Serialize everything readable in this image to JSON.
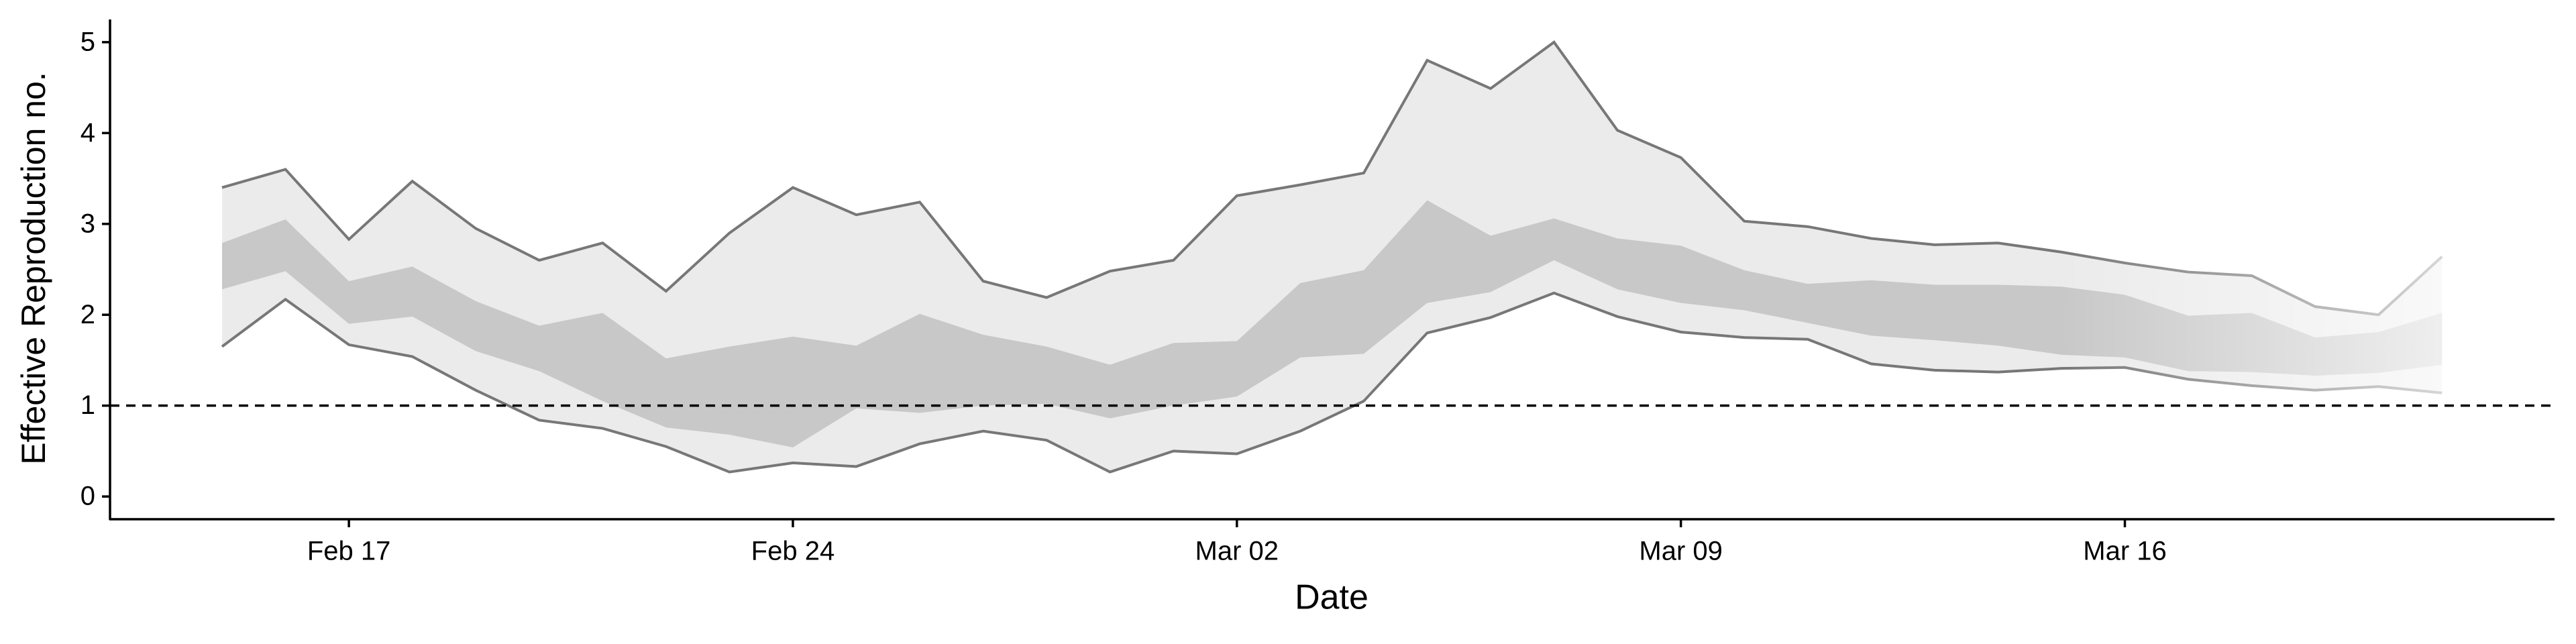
{
  "chart_data": {
    "type": "band",
    "xlabel": "Date",
    "ylabel": "Effective Reproduction no.",
    "categories": [
      null,
      null,
      "Feb 17",
      null,
      null,
      null,
      null,
      null,
      null,
      "Feb 24",
      null,
      null,
      null,
      null,
      null,
      null,
      "Mar 02",
      null,
      null,
      null,
      null,
      null,
      null,
      "Mar 09",
      null,
      null,
      null,
      null,
      null,
      null,
      "Mar 16",
      null,
      null,
      null,
      null,
      null
    ],
    "outer": {
      "color": "#ebebeb",
      "line_color": "#777777",
      "upper": [
        3.4,
        3.6,
        2.83,
        3.47,
        2.95,
        2.6,
        2.79,
        2.26,
        2.9,
        3.4,
        3.1,
        3.24,
        2.37,
        2.19,
        2.48,
        2.6,
        3.31,
        3.43,
        3.56,
        4.8,
        4.49,
        5.0,
        4.03,
        3.73,
        3.03,
        2.97,
        2.84,
        2.77,
        2.79,
        2.69,
        2.57,
        2.47,
        2.43,
        2.09,
        2.0,
        2.64
      ],
      "lower": [
        1.65,
        2.17,
        1.67,
        1.54,
        1.17,
        0.84,
        0.75,
        0.55,
        0.27,
        0.37,
        0.33,
        0.58,
        0.72,
        0.62,
        0.27,
        0.5,
        0.47,
        0.72,
        1.05,
        1.8,
        1.97,
        2.24,
        1.98,
        1.81,
        1.75,
        1.73,
        1.46,
        1.39,
        1.37,
        1.41,
        1.42,
        1.29,
        1.22,
        1.17,
        1.21,
        1.14
      ]
    },
    "inner": {
      "color": "#c8c8c8",
      "upper": [
        2.79,
        3.05,
        2.37,
        2.53,
        2.15,
        1.88,
        2.02,
        1.52,
        1.65,
        1.76,
        1.66,
        2.01,
        1.78,
        1.65,
        1.45,
        1.69,
        1.71,
        2.35,
        2.49,
        3.26,
        2.87,
        3.06,
        2.84,
        2.76,
        2.49,
        2.34,
        2.38,
        2.33,
        2.33,
        2.31,
        2.22,
        1.99,
        2.02,
        1.75,
        1.81,
        2.02
      ],
      "lower": [
        2.28,
        2.48,
        1.9,
        1.98,
        1.6,
        1.38,
        1.05,
        0.76,
        0.68,
        0.54,
        0.97,
        0.92,
        1.0,
        1.02,
        0.86,
        1.0,
        1.1,
        1.53,
        1.57,
        2.13,
        2.25,
        2.6,
        2.28,
        2.13,
        2.05,
        1.91,
        1.77,
        1.72,
        1.66,
        1.56,
        1.53,
        1.38,
        1.37,
        1.33,
        1.36,
        1.45
      ]
    },
    "hline": 1,
    "ylim": [
      -0.25,
      5.25
    ],
    "yticks": [
      0,
      1,
      2,
      3,
      4,
      5
    ]
  }
}
